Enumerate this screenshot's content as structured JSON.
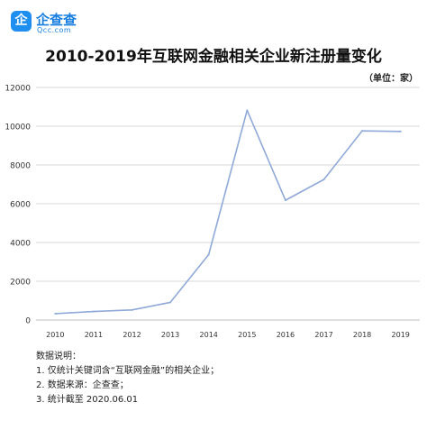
{
  "brand": {
    "logo_char": "企",
    "name": "企查查",
    "domain": "Qcc.com"
  },
  "chart_data": {
    "type": "line",
    "title": "2010-2019年互联网金融相关企业新注册量变化",
    "unit": "（单位：家）",
    "x": [
      "2010",
      "2011",
      "2012",
      "2013",
      "2014",
      "2015",
      "2016",
      "2017",
      "2018",
      "2019"
    ],
    "series": [
      {
        "values": [
          330,
          440,
          520,
          910,
          3380,
          10820,
          6180,
          7250,
          9760,
          9730
        ]
      }
    ],
    "ylim": [
      0,
      12000
    ],
    "yticks": [
      "0",
      "2000",
      "4000",
      "6000",
      "8000",
      "10000",
      "12000"
    ],
    "grid": true,
    "line_color": "#8fa9d8"
  },
  "notes": {
    "heading": "数据说明：",
    "items": [
      "1. 仅统计关键词含“互联网金融”的相关企业；",
      "2. 数据来源：企查查；",
      "3. 统计截至 2020.06.01"
    ]
  }
}
